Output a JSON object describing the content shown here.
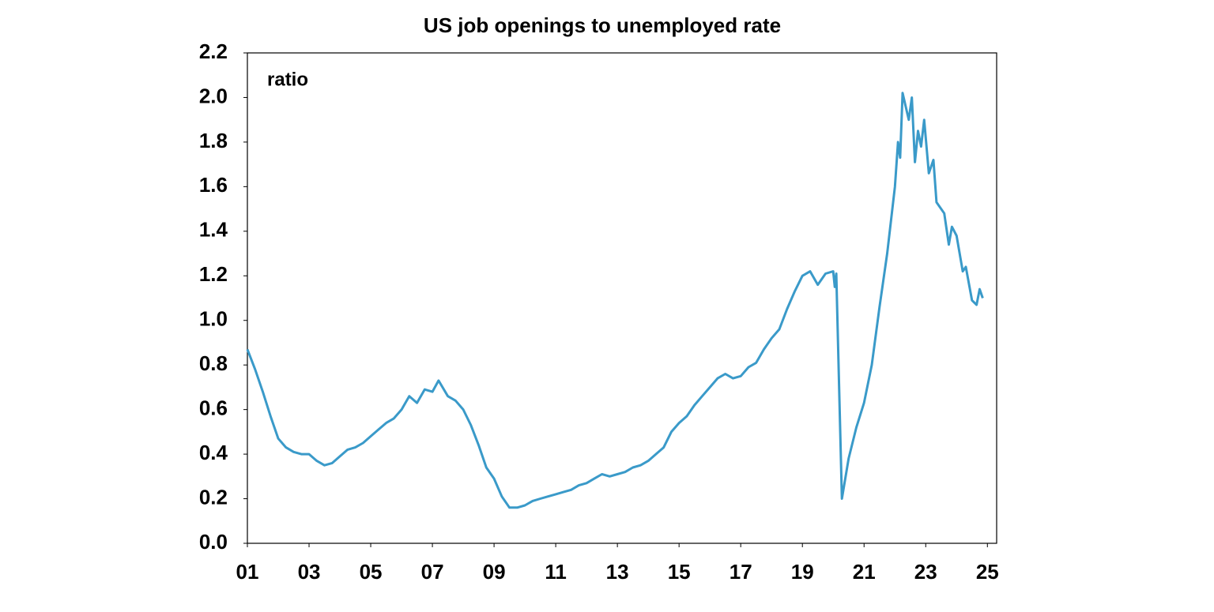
{
  "chart_data": {
    "type": "line",
    "title": "US job openings to unemployed rate",
    "annotation": "ratio",
    "x": [
      1.0,
      1.25,
      1.5,
      1.75,
      2.0,
      2.25,
      2.5,
      2.75,
      3.0,
      3.25,
      3.5,
      3.75,
      4.0,
      4.25,
      4.5,
      4.75,
      5.0,
      5.25,
      5.5,
      5.75,
      6.0,
      6.25,
      6.5,
      6.75,
      7.0,
      7.2,
      7.5,
      7.75,
      8.0,
      8.25,
      8.5,
      8.75,
      9.0,
      9.25,
      9.5,
      9.75,
      10.0,
      10.25,
      10.5,
      10.75,
      11.0,
      11.25,
      11.5,
      11.75,
      12.0,
      12.25,
      12.5,
      12.75,
      13.0,
      13.25,
      13.5,
      13.75,
      14.0,
      14.25,
      14.5,
      14.75,
      15.0,
      15.25,
      15.5,
      15.75,
      16.0,
      16.25,
      16.5,
      16.75,
      17.0,
      17.25,
      17.5,
      17.75,
      18.0,
      18.25,
      18.5,
      18.75,
      19.0,
      19.25,
      19.5,
      19.75,
      20.0,
      20.05,
      20.1,
      20.28,
      20.5,
      20.75,
      21.0,
      21.25,
      21.5,
      21.75,
      22.0,
      22.1,
      22.17,
      22.25,
      22.45,
      22.55,
      22.65,
      22.75,
      22.85,
      22.95,
      23.1,
      23.25,
      23.35,
      23.6,
      23.75,
      23.85,
      24.0,
      24.2,
      24.3,
      24.5,
      24.65,
      24.75,
      24.85
    ],
    "series": [
      {
        "name": "ratio",
        "color": "#3a9ac9",
        "values": [
          0.87,
          0.78,
          0.68,
          0.57,
          0.47,
          0.43,
          0.41,
          0.4,
          0.4,
          0.37,
          0.35,
          0.36,
          0.39,
          0.42,
          0.43,
          0.45,
          0.48,
          0.51,
          0.54,
          0.56,
          0.6,
          0.66,
          0.63,
          0.69,
          0.68,
          0.73,
          0.66,
          0.64,
          0.6,
          0.53,
          0.44,
          0.34,
          0.29,
          0.21,
          0.16,
          0.16,
          0.17,
          0.19,
          0.2,
          0.21,
          0.22,
          0.23,
          0.24,
          0.26,
          0.27,
          0.29,
          0.31,
          0.3,
          0.31,
          0.32,
          0.34,
          0.35,
          0.37,
          0.4,
          0.43,
          0.5,
          0.54,
          0.57,
          0.62,
          0.66,
          0.7,
          0.74,
          0.76,
          0.74,
          0.75,
          0.79,
          0.81,
          0.87,
          0.92,
          0.96,
          1.05,
          1.13,
          1.2,
          1.22,
          1.16,
          1.21,
          1.22,
          1.15,
          1.21,
          0.2,
          0.38,
          0.52,
          0.63,
          0.8,
          1.06,
          1.3,
          1.6,
          1.8,
          1.73,
          2.02,
          1.9,
          2.0,
          1.71,
          1.85,
          1.78,
          1.9,
          1.66,
          1.72,
          1.53,
          1.48,
          1.34,
          1.42,
          1.38,
          1.22,
          1.24,
          1.09,
          1.07,
          1.14,
          1.1
        ]
      }
    ],
    "xlim": [
      1,
      25.3
    ],
    "ylim": [
      0,
      2.2
    ],
    "xticks": [
      {
        "value": 1,
        "label": "01"
      },
      {
        "value": 3,
        "label": "03"
      },
      {
        "value": 5,
        "label": "05"
      },
      {
        "value": 7,
        "label": "07"
      },
      {
        "value": 9,
        "label": "09"
      },
      {
        "value": 11,
        "label": "11"
      },
      {
        "value": 13,
        "label": "13"
      },
      {
        "value": 15,
        "label": "15"
      },
      {
        "value": 17,
        "label": "17"
      },
      {
        "value": 19,
        "label": "19"
      },
      {
        "value": 21,
        "label": "21"
      },
      {
        "value": 23,
        "label": "23"
      },
      {
        "value": 25,
        "label": "25"
      }
    ],
    "yticks": [
      {
        "value": 0,
        "label": "0.0"
      },
      0.2,
      0.4,
      0.6,
      0.8,
      {
        "value": 1,
        "label": "1.0"
      },
      1.2,
      1.4,
      1.6,
      1.8,
      {
        "value": 2,
        "label": "2.0"
      },
      2.2
    ]
  }
}
